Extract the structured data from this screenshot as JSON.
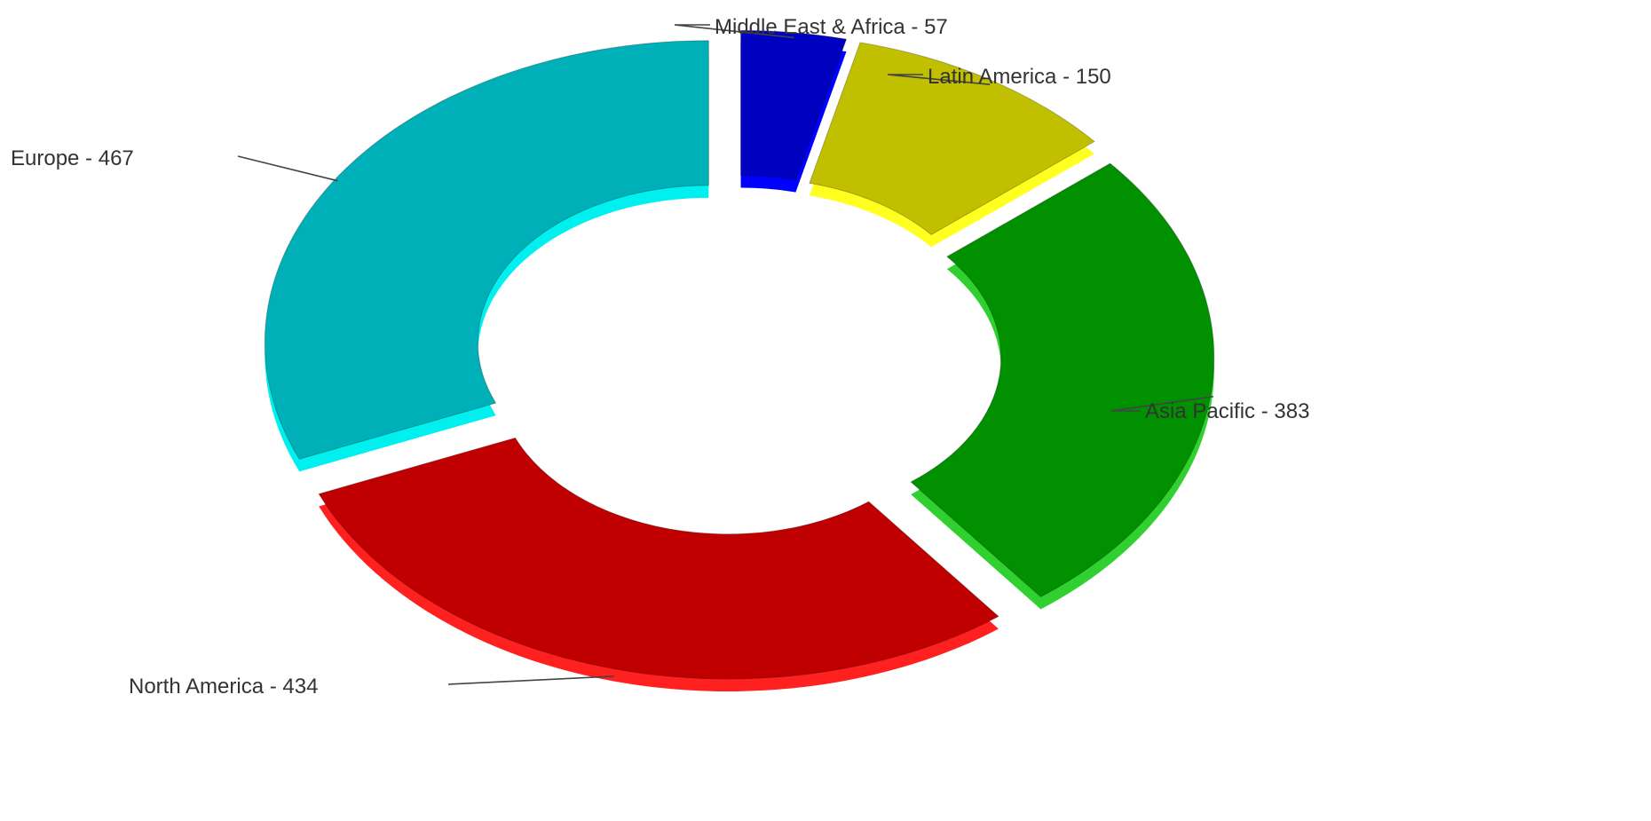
{
  "chart_data": {
    "type": "pie",
    "style": "3d-exploded-donut",
    "title": "",
    "slices": [
      {
        "label": "Middle East & Africa",
        "value": 57,
        "display": "Middle East & Africa - 57",
        "color": "#0000c0",
        "side": "#0000ff"
      },
      {
        "label": "Latin America",
        "value": 150,
        "display": "Latin America - 150",
        "color": "#c0c000",
        "side": "#ffff20"
      },
      {
        "label": "Asia Pacific",
        "value": 383,
        "display": "Asia Pacific - 383",
        "color": "#009000",
        "side": "#30d030"
      },
      {
        "label": "North America",
        "value": 434,
        "display": "North America - 434",
        "color": "#c00000",
        "side": "#ff2020"
      },
      {
        "label": "Europe",
        "value": 467,
        "display": "Europe - 467",
        "color": "#00b0b8",
        "side": "#00f0f0"
      }
    ]
  }
}
